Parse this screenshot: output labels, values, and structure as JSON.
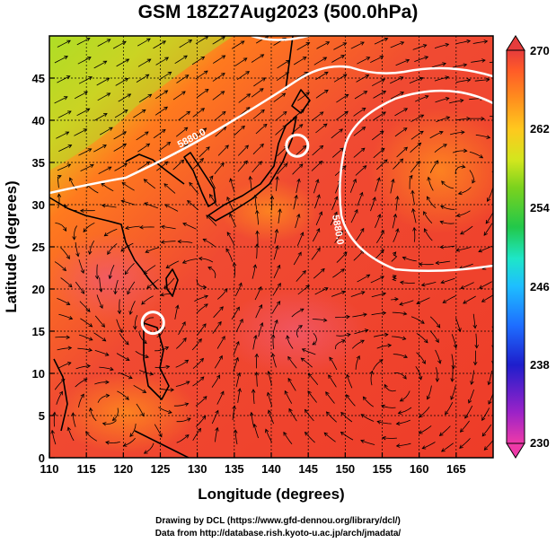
{
  "title": "GSM 18Z27Aug2023 (500.0hPa)",
  "map": {
    "x_axis_label": "Longitude (degrees)",
    "y_axis_label": "Latitude  (degrees)",
    "lon_range": [
      110,
      170
    ],
    "lat_range": [
      0,
      50
    ],
    "x_ticks": [
      "110",
      "115",
      "120",
      "125",
      "130",
      "135",
      "140",
      "145",
      "150",
      "155",
      "160",
      "165"
    ],
    "y_ticks": [
      "0",
      "5",
      "10",
      "15",
      "20",
      "25",
      "30",
      "35",
      "40",
      "45"
    ],
    "contour_labels": [
      "5880.0",
      "5880.0"
    ],
    "contour_line_color": "#ffffff",
    "streamline_color": "#000000",
    "coastline_color": "#000000",
    "cyclone_markers": [
      {
        "lon": 143.5,
        "lat": 37.0,
        "name": "circle-marker-north"
      },
      {
        "lon": 124.0,
        "lat": 16.0,
        "name": "circle-marker-south"
      }
    ]
  },
  "colorbar": {
    "labels": [
      "270",
      "262",
      "254",
      "246",
      "238",
      "230"
    ],
    "min": 230,
    "max": 270,
    "colors": [
      "#ef2f9a",
      "#8a1ec8",
      "#1e1ed2",
      "#1e64ff",
      "#1eb4ff",
      "#1ee6c8",
      "#1ec864",
      "#64d21e",
      "#c8e61e",
      "#ffd21e",
      "#ff961e",
      "#ff5a1e",
      "#e63c3c"
    ]
  },
  "credits": {
    "line1": "Drawing by DCL (https://www.gfd-dennou.org/library/dcl/)",
    "line2": "Data from http://database.rish.kyoto-u.ac.jp/arch/jmadata/"
  }
}
